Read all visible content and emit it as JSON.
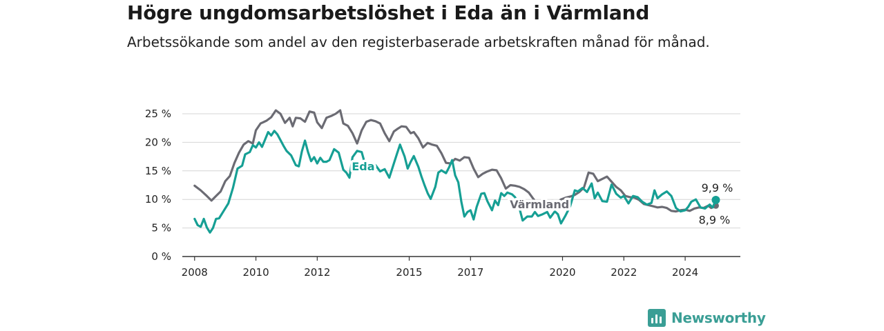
{
  "header": {
    "title": "Högre ungdomsarbetslöshet i Eda än i Värmland",
    "subtitle": "Arbetssökande som andel av den registerbaserade arbetskraften månad för månad."
  },
  "brand": {
    "name": "Newsworthy",
    "icon": "bar-chart-logo-icon",
    "color": "#3a9e95"
  },
  "chart_data": {
    "type": "line",
    "title": "Högre ungdomsarbetslöshet i Eda än i Värmland",
    "subtitle": "Arbetssökande som andel av den registerbaserade arbetskraften månad för månad.",
    "xlabel": "",
    "ylabel": "",
    "xlim": [
      2007.6,
      2025.8
    ],
    "ylim": [
      0,
      25
    ],
    "x_ticks": [
      {
        "value": 2008,
        "label": "2008"
      },
      {
        "value": 2010,
        "label": "2010"
      },
      {
        "value": 2012,
        "label": "2012"
      },
      {
        "value": 2015,
        "label": "2015"
      },
      {
        "value": 2017,
        "label": "2017"
      },
      {
        "value": 2020,
        "label": "2020"
      },
      {
        "value": 2022,
        "label": "2022"
      },
      {
        "value": 2024,
        "label": "2024"
      }
    ],
    "y_ticks": [
      {
        "value": 0,
        "label": "0 %"
      },
      {
        "value": 5,
        "label": "5 %"
      },
      {
        "value": 10,
        "label": "10 %"
      },
      {
        "value": 15,
        "label": "15 %"
      },
      {
        "value": 20,
        "label": "20 %"
      },
      {
        "value": 25,
        "label": "25 %"
      }
    ],
    "grid": true,
    "legend": "inline labels on lines",
    "series": [
      {
        "name": "Värmland",
        "color": "#6b6b73",
        "label_text": "Värmland",
        "end_label": "8,9 %",
        "points": [
          [
            2008.0,
            12.4
          ],
          [
            2008.2,
            11.6
          ],
          [
            2008.4,
            10.6
          ],
          [
            2008.55,
            9.8
          ],
          [
            2008.7,
            10.6
          ],
          [
            2008.85,
            11.4
          ],
          [
            2009.0,
            13.2
          ],
          [
            2009.15,
            14.1
          ],
          [
            2009.3,
            16.4
          ],
          [
            2009.45,
            18.2
          ],
          [
            2009.6,
            19.6
          ],
          [
            2009.75,
            20.2
          ],
          [
            2009.9,
            19.8
          ],
          [
            2010.0,
            22.1
          ],
          [
            2010.15,
            23.3
          ],
          [
            2010.35,
            23.8
          ],
          [
            2010.5,
            24.4
          ],
          [
            2010.65,
            25.6
          ],
          [
            2010.8,
            25.0
          ],
          [
            2010.95,
            23.4
          ],
          [
            2011.1,
            24.3
          ],
          [
            2011.2,
            22.8
          ],
          [
            2011.3,
            24.3
          ],
          [
            2011.45,
            24.2
          ],
          [
            2011.6,
            23.6
          ],
          [
            2011.75,
            25.4
          ],
          [
            2011.9,
            25.2
          ],
          [
            2012.0,
            23.5
          ],
          [
            2012.15,
            22.5
          ],
          [
            2012.3,
            24.3
          ],
          [
            2012.45,
            24.6
          ],
          [
            2012.6,
            25.0
          ],
          [
            2012.75,
            25.6
          ],
          [
            2012.85,
            23.3
          ],
          [
            2013.0,
            22.9
          ],
          [
            2013.15,
            21.6
          ],
          [
            2013.3,
            19.8
          ],
          [
            2013.45,
            22.1
          ],
          [
            2013.6,
            23.6
          ],
          [
            2013.75,
            23.9
          ],
          [
            2013.9,
            23.7
          ],
          [
            2014.05,
            23.3
          ],
          [
            2014.2,
            21.6
          ],
          [
            2014.35,
            20.2
          ],
          [
            2014.5,
            21.9
          ],
          [
            2014.6,
            22.3
          ],
          [
            2014.75,
            22.8
          ],
          [
            2014.9,
            22.7
          ],
          [
            2015.05,
            21.6
          ],
          [
            2015.15,
            21.8
          ],
          [
            2015.3,
            20.7
          ],
          [
            2015.45,
            19.1
          ],
          [
            2015.6,
            19.9
          ],
          [
            2015.75,
            19.6
          ],
          [
            2015.9,
            19.4
          ],
          [
            2016.05,
            18.1
          ],
          [
            2016.2,
            16.4
          ],
          [
            2016.35,
            16.3
          ],
          [
            2016.5,
            17.1
          ],
          [
            2016.65,
            16.8
          ],
          [
            2016.8,
            17.4
          ],
          [
            2016.95,
            17.3
          ],
          [
            2017.1,
            15.4
          ],
          [
            2017.25,
            13.9
          ],
          [
            2017.4,
            14.5
          ],
          [
            2017.55,
            14.9
          ],
          [
            2017.7,
            15.2
          ],
          [
            2017.85,
            15.1
          ],
          [
            2018.0,
            13.7
          ],
          [
            2018.15,
            11.9
          ],
          [
            2018.3,
            12.5
          ],
          [
            2018.45,
            12.4
          ],
          [
            2018.6,
            12.2
          ],
          [
            2018.75,
            11.8
          ],
          [
            2018.9,
            11.2
          ],
          [
            2019.05,
            10.1
          ],
          [
            2019.2,
            9.1
          ],
          [
            2019.35,
            9.2
          ],
          [
            2019.5,
            9.7
          ],
          [
            2019.65,
            9.6
          ],
          [
            2019.8,
            9.4
          ],
          [
            2019.95,
            10.0
          ],
          [
            2020.1,
            10.3
          ],
          [
            2020.25,
            10.5
          ],
          [
            2020.4,
            10.8
          ],
          [
            2020.55,
            11.3
          ],
          [
            2020.7,
            12.1
          ],
          [
            2020.85,
            14.7
          ],
          [
            2021.0,
            14.5
          ],
          [
            2021.15,
            13.2
          ],
          [
            2021.3,
            13.6
          ],
          [
            2021.45,
            14.0
          ],
          [
            2021.6,
            13.1
          ],
          [
            2021.75,
            12.2
          ],
          [
            2021.9,
            11.6
          ],
          [
            2022.05,
            10.6
          ],
          [
            2022.2,
            10.4
          ],
          [
            2022.35,
            10.3
          ],
          [
            2022.5,
            9.9
          ],
          [
            2022.65,
            9.2
          ],
          [
            2022.8,
            9.0
          ],
          [
            2022.95,
            8.8
          ],
          [
            2023.1,
            8.6
          ],
          [
            2023.25,
            8.7
          ],
          [
            2023.4,
            8.5
          ],
          [
            2023.55,
            8.0
          ],
          [
            2023.7,
            7.9
          ],
          [
            2023.85,
            8.1
          ],
          [
            2024.0,
            8.2
          ],
          [
            2024.15,
            8.0
          ],
          [
            2024.3,
            8.4
          ],
          [
            2024.45,
            8.6
          ],
          [
            2024.6,
            8.5
          ],
          [
            2024.75,
            8.9
          ],
          [
            2024.85,
            8.5
          ],
          [
            2025.0,
            8.9
          ]
        ]
      },
      {
        "name": "Eda",
        "color": "#169f94",
        "label_text": "Eda",
        "end_label": "9,9 %",
        "points": [
          [
            2008.0,
            6.6
          ],
          [
            2008.1,
            5.5
          ],
          [
            2008.2,
            5.2
          ],
          [
            2008.3,
            6.6
          ],
          [
            2008.4,
            5.1
          ],
          [
            2008.5,
            4.2
          ],
          [
            2008.6,
            5.0
          ],
          [
            2008.7,
            6.6
          ],
          [
            2008.8,
            6.7
          ],
          [
            2008.95,
            8.0
          ],
          [
            2009.1,
            9.3
          ],
          [
            2009.25,
            12.0
          ],
          [
            2009.4,
            15.4
          ],
          [
            2009.55,
            15.9
          ],
          [
            2009.65,
            17.9
          ],
          [
            2009.8,
            18.3
          ],
          [
            2009.9,
            19.5
          ],
          [
            2010.0,
            19.1
          ],
          [
            2010.1,
            20.0
          ],
          [
            2010.2,
            19.2
          ],
          [
            2010.3,
            20.5
          ],
          [
            2010.4,
            21.8
          ],
          [
            2010.5,
            21.2
          ],
          [
            2010.6,
            22.0
          ],
          [
            2010.7,
            21.4
          ],
          [
            2010.8,
            20.4
          ],
          [
            2010.9,
            19.4
          ],
          [
            2011.0,
            18.5
          ],
          [
            2011.15,
            17.7
          ],
          [
            2011.3,
            16.0
          ],
          [
            2011.4,
            15.8
          ],
          [
            2011.5,
            18.4
          ],
          [
            2011.6,
            20.3
          ],
          [
            2011.7,
            18.3
          ],
          [
            2011.8,
            16.7
          ],
          [
            2011.9,
            17.4
          ],
          [
            2012.0,
            16.3
          ],
          [
            2012.1,
            17.3
          ],
          [
            2012.2,
            16.6
          ],
          [
            2012.3,
            16.6
          ],
          [
            2012.4,
            16.9
          ],
          [
            2012.55,
            18.8
          ],
          [
            2012.7,
            18.2
          ],
          [
            2012.85,
            15.2
          ],
          [
            2012.95,
            14.7
          ],
          [
            2013.05,
            13.8
          ],
          [
            2013.15,
            17.4
          ],
          [
            2013.3,
            18.5
          ],
          [
            2013.45,
            18.3
          ],
          [
            2013.6,
            15.4
          ],
          [
            2013.75,
            16.4
          ],
          [
            2013.9,
            16.0
          ],
          [
            2014.05,
            14.9
          ],
          [
            2014.2,
            15.3
          ],
          [
            2014.35,
            13.8
          ],
          [
            2014.5,
            16.3
          ],
          [
            2014.6,
            18.0
          ],
          [
            2014.7,
            19.6
          ],
          [
            2014.85,
            17.5
          ],
          [
            2014.95,
            15.4
          ],
          [
            2015.05,
            16.6
          ],
          [
            2015.15,
            17.6
          ],
          [
            2015.3,
            15.7
          ],
          [
            2015.4,
            14.0
          ],
          [
            2015.5,
            12.5
          ],
          [
            2015.6,
            11.1
          ],
          [
            2015.7,
            10.1
          ],
          [
            2015.85,
            12.2
          ],
          [
            2015.95,
            14.7
          ],
          [
            2016.05,
            15.1
          ],
          [
            2016.2,
            14.6
          ],
          [
            2016.3,
            15.6
          ],
          [
            2016.4,
            16.9
          ],
          [
            2016.5,
            14.2
          ],
          [
            2016.6,
            13.0
          ],
          [
            2016.7,
            9.6
          ],
          [
            2016.8,
            7.0
          ],
          [
            2016.9,
            7.8
          ],
          [
            2017.0,
            8.1
          ],
          [
            2017.1,
            6.5
          ],
          [
            2017.2,
            8.7
          ],
          [
            2017.35,
            11.0
          ],
          [
            2017.45,
            11.1
          ],
          [
            2017.55,
            9.7
          ],
          [
            2017.7,
            8.1
          ],
          [
            2017.8,
            9.8
          ],
          [
            2017.9,
            9.0
          ],
          [
            2018.0,
            11.1
          ],
          [
            2018.1,
            10.6
          ],
          [
            2018.2,
            11.2
          ],
          [
            2018.35,
            10.9
          ],
          [
            2018.45,
            10.4
          ],
          [
            2018.55,
            9.4
          ],
          [
            2018.7,
            6.3
          ],
          [
            2018.85,
            7.0
          ],
          [
            2019.0,
            7.0
          ],
          [
            2019.1,
            7.8
          ],
          [
            2019.2,
            7.1
          ],
          [
            2019.35,
            7.4
          ],
          [
            2019.5,
            7.8
          ],
          [
            2019.6,
            6.8
          ],
          [
            2019.75,
            7.9
          ],
          [
            2019.85,
            7.4
          ],
          [
            2019.95,
            5.8
          ],
          [
            2020.1,
            7.2
          ],
          [
            2020.25,
            8.8
          ],
          [
            2020.4,
            11.6
          ],
          [
            2020.5,
            11.4
          ],
          [
            2020.65,
            12.0
          ],
          [
            2020.8,
            11.3
          ],
          [
            2020.95,
            12.8
          ],
          [
            2021.05,
            10.2
          ],
          [
            2021.15,
            11.2
          ],
          [
            2021.3,
            9.7
          ],
          [
            2021.45,
            9.6
          ],
          [
            2021.6,
            12.6
          ],
          [
            2021.75,
            11.0
          ],
          [
            2021.9,
            10.3
          ],
          [
            2022.0,
            10.6
          ],
          [
            2022.15,
            9.3
          ],
          [
            2022.3,
            10.6
          ],
          [
            2022.45,
            10.4
          ],
          [
            2022.6,
            9.6
          ],
          [
            2022.75,
            9.1
          ],
          [
            2022.9,
            9.4
          ],
          [
            2023.0,
            11.6
          ],
          [
            2023.1,
            10.2
          ],
          [
            2023.25,
            10.9
          ],
          [
            2023.4,
            11.4
          ],
          [
            2023.55,
            10.6
          ],
          [
            2023.7,
            8.5
          ],
          [
            2023.85,
            7.9
          ],
          [
            2024.0,
            8.1
          ],
          [
            2024.1,
            8.7
          ],
          [
            2024.2,
            9.6
          ],
          [
            2024.35,
            10.0
          ],
          [
            2024.5,
            8.6
          ],
          [
            2024.65,
            8.4
          ],
          [
            2024.8,
            9.1
          ],
          [
            2024.9,
            8.6
          ],
          [
            2025.0,
            9.9
          ]
        ]
      }
    ]
  }
}
